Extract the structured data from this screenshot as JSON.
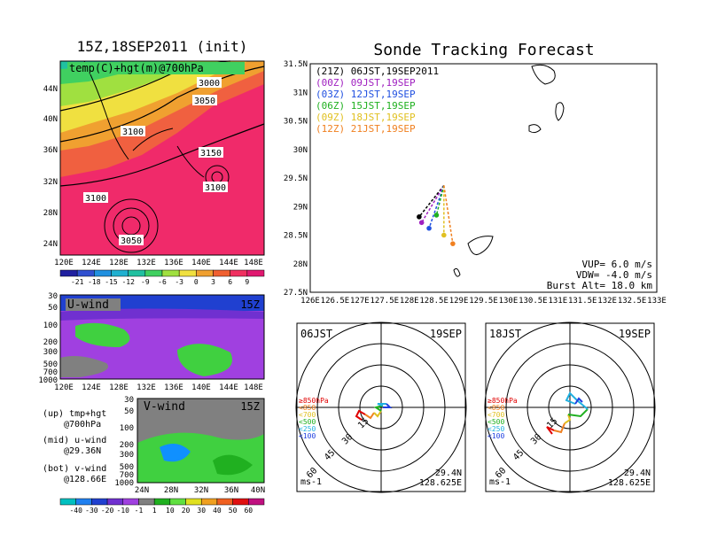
{
  "left_top": {
    "title": "15Z,18SEP2011 (init)",
    "panel_label": "temp(C)+hgt(m)@700hPa",
    "y_ticks": [
      "44N",
      "40N",
      "36N",
      "32N",
      "28N",
      "24N"
    ],
    "x_ticks": [
      "120E",
      "124E",
      "128E",
      "132E",
      "136E",
      "140E",
      "144E",
      "148E"
    ],
    "contour_labels": [
      "3000",
      "3050",
      "3100",
      "3150",
      "3100",
      "3100",
      "3050"
    ],
    "colorbar_labels": [
      "-21",
      "-18",
      "-15",
      "-12",
      "-9",
      "-6",
      "-3",
      "0",
      "3",
      "6",
      "9"
    ],
    "colorbar_colors": [
      "#2020a0",
      "#3050d0",
      "#2090e0",
      "#20b0d0",
      "#20c0a0",
      "#40d060",
      "#a0e040",
      "#f0e040",
      "#f0a030",
      "#f06030",
      "#f03060",
      "#e01870"
    ]
  },
  "left_mid": {
    "panel_label": "U-wind",
    "time_label": "15Z",
    "y_ticks": [
      "30",
      "50",
      "100",
      "200",
      "300",
      "500",
      "700",
      "1000"
    ],
    "x_ticks": [
      "120E",
      "124E",
      "128E",
      "132E",
      "136E",
      "140E",
      "144E",
      "148E"
    ]
  },
  "left_bot": {
    "panel_label": "V-wind",
    "time_label": "15Z",
    "y_ticks": [
      "30",
      "50",
      "100",
      "200",
      "300",
      "500",
      "700",
      "1000"
    ],
    "x_ticks": [
      "24N",
      "28N",
      "32N",
      "36N",
      "40N"
    ],
    "colorbar_labels": [
      "-40",
      "-30",
      "-20",
      "-10",
      "-1",
      "1",
      "10",
      "20",
      "30",
      "40",
      "50",
      "60"
    ],
    "colorbar_colors": [
      "#00c0c0",
      "#2080f0",
      "#2040d0",
      "#7030d0",
      "#a040e0",
      "#808080",
      "#20b020",
      "#60e040",
      "#e0e020",
      "#f0a020",
      "#f06020",
      "#e01010",
      "#c01080"
    ]
  },
  "legend_text": {
    "l1a": "(up) tmp+hgt",
    "l1b": "@700hPa",
    "l2a": "(mid) u-wind",
    "l2b": "@29.36N",
    "l3a": "(bot) v-wind",
    "l3b": "@128.66E"
  },
  "main_chart": {
    "title": "Sonde Tracking Forecast",
    "y_ticks": [
      "31.5N",
      "31N",
      "30.5N",
      "30N",
      "29.5N",
      "29N",
      "28.5N",
      "28N",
      "27.5N"
    ],
    "x_ticks": [
      "126E",
      "126.5E",
      "127E",
      "127.5E",
      "128E",
      "128.5E",
      "129E",
      "129.5E",
      "130E",
      "130.5E",
      "131E",
      "131.5E",
      "132E",
      "132.5E",
      "133E"
    ],
    "legend": [
      {
        "label": "(21Z) 06JST,19SEP2011",
        "color": "#000000"
      },
      {
        "label": "(00Z) 09JST,19SEP",
        "color": "#a020c0"
      },
      {
        "label": "(03Z) 12JST,19SEP",
        "color": "#2050e0"
      },
      {
        "label": "(06Z) 15JST,19SEP",
        "color": "#20b020"
      },
      {
        "label": "(09Z) 18JST,19SEP",
        "color": "#e0c020"
      },
      {
        "label": "(12Z) 21JST,19SEP",
        "color": "#f08020"
      }
    ],
    "params": {
      "vup": "VUP= 6.0 m/s",
      "vdw": "VDW= -4.0 m/s",
      "burst": "Burst Alt= 18.0 km"
    }
  },
  "hodo_left": {
    "time": "06JST",
    "date": "19SEP",
    "ring_labels": [
      "15",
      "30",
      "45",
      "60"
    ],
    "levels": [
      {
        "label": "≥850hPa",
        "color": "#e00000"
      },
      {
        "label": "<850",
        "color": "#f08020"
      },
      {
        "label": "<700",
        "color": "#e0c020"
      },
      {
        "label": "<500",
        "color": "#20b020"
      },
      {
        "label": "<250",
        "color": "#20b0e0"
      },
      {
        "label": "<100",
        "color": "#2040e0"
      }
    ],
    "units": "ms-1",
    "lat": "29.4N",
    "lon": "128.625E"
  },
  "hodo_right": {
    "time": "18JST",
    "date": "19SEP",
    "ring_labels": [
      "15",
      "30",
      "45",
      "60"
    ],
    "levels": [
      {
        "label": "≥850hPa",
        "color": "#e00000"
      },
      {
        "label": "<850",
        "color": "#f08020"
      },
      {
        "label": "<700",
        "color": "#e0c020"
      },
      {
        "label": "<500",
        "color": "#20b020"
      },
      {
        "label": "<250",
        "color": "#20b0e0"
      },
      {
        "label": "<100",
        "color": "#2040e0"
      }
    ],
    "units": "ms-1",
    "lat": "29.4N",
    "lon": "128.625E"
  },
  "chart_data": {
    "type": "line",
    "title": "Sonde Tracking Forecast",
    "xlim": [
      126,
      133
    ],
    "ylim": [
      27.5,
      31.5
    ],
    "launch": [
      128.7,
      29.37
    ],
    "series": [
      {
        "name": "(21Z) 06JST,19SEP2011",
        "color": "#000000",
        "landing": [
          128.2,
          28.82
        ]
      },
      {
        "name": "(00Z) 09JST,19SEP",
        "color": "#a020c0",
        "landing": [
          128.25,
          28.72
        ]
      },
      {
        "name": "(03Z) 12JST,19SEP",
        "color": "#2050e0",
        "landing": [
          128.4,
          28.62
        ]
      },
      {
        "name": "(06Z) 15JST,19SEP",
        "color": "#20b020",
        "landing": [
          128.55,
          28.85
        ]
      },
      {
        "name": "(09Z) 18JST,19SEP",
        "color": "#e0c020",
        "landing": [
          128.7,
          28.5
        ]
      },
      {
        "name": "(12Z) 21JST,19SEP",
        "color": "#f08020",
        "landing": [
          128.88,
          28.35
        ]
      }
    ]
  }
}
